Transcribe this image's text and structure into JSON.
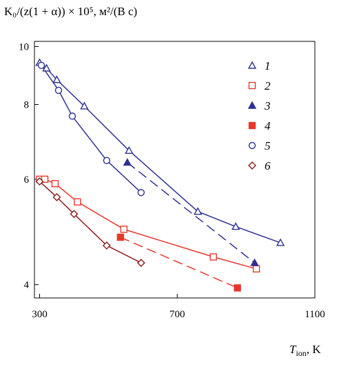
{
  "chart_data": {
    "type": "line",
    "y_title": "K₀/(z(1 + α)) × 10⁵, м²/(В c)",
    "x_title_var": "T",
    "x_title_sub": "ion",
    "x_title_unit": ", K",
    "xlim": [
      285,
      1100
    ],
    "ylim": [
      3.8,
      10.2
    ],
    "y_scale": "log",
    "x_ticks": [
      300,
      700,
      1100
    ],
    "y_ticks": [
      4,
      6,
      8,
      10
    ],
    "grid": false,
    "legend_position": "top-right",
    "series": [
      {
        "name": "1",
        "color": "#2e3192",
        "marker": "triangle-open",
        "line": "solid",
        "x": [
          300,
          320,
          350,
          430,
          560,
          760,
          870,
          1000
        ],
        "y": [
          9.4,
          9.2,
          8.8,
          7.95,
          6.7,
          5.3,
          5.0,
          4.7
        ]
      },
      {
        "name": "2",
        "color": "#e8382c",
        "marker": "square-open",
        "line": "solid",
        "x": [
          300,
          315,
          345,
          410,
          545,
          805,
          930
        ],
        "y": [
          6.0,
          6.0,
          5.9,
          5.5,
          4.95,
          4.45,
          4.25
        ]
      },
      {
        "name": "3",
        "color": "#2e3192",
        "marker": "triangle-filled",
        "line": "dashed",
        "x": [
          555,
          925
        ],
        "y": [
          6.4,
          4.35
        ]
      },
      {
        "name": "4",
        "color": "#e8382c",
        "marker": "square-filled",
        "line": "dashed",
        "x": [
          535,
          875
        ],
        "y": [
          4.8,
          3.95
        ]
      },
      {
        "name": "5",
        "color": "#2e3192",
        "marker": "circle-open",
        "line": "solid",
        "x": [
          305,
          355,
          395,
          495,
          595
        ],
        "y": [
          9.3,
          8.45,
          7.65,
          6.45,
          5.7
        ]
      },
      {
        "name": "6",
        "color": "#8b1a1a",
        "marker": "diamond-open",
        "line": "solid",
        "x": [
          300,
          350,
          400,
          495,
          595
        ],
        "y": [
          5.95,
          5.6,
          5.25,
          4.65,
          4.35
        ]
      }
    ]
  }
}
